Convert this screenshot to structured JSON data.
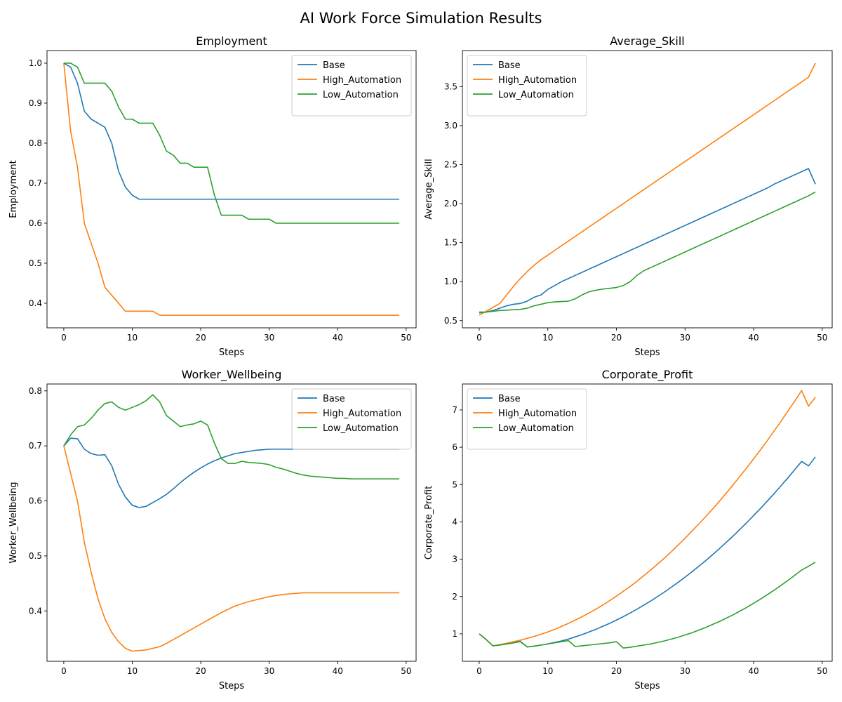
{
  "figure": {
    "title": "AI Work Force Simulation Results"
  },
  "chart_data": [
    {
      "type": "line",
      "title": "Employment",
      "xlabel": "Steps",
      "ylabel": "Employment",
      "xlim": [
        -2.45,
        51.45
      ],
      "ylim": [
        0.3385,
        1.0315
      ],
      "xticks": [
        0,
        10,
        20,
        30,
        40,
        50
      ],
      "yticks": [
        0.4,
        0.5,
        0.6,
        0.7,
        0.8,
        0.9,
        1.0
      ],
      "ytick_labels": [
        "0.4",
        "0.5",
        "0.6",
        "0.7",
        "0.8",
        "0.9",
        "1.0"
      ],
      "legend": "upper-right",
      "series": [
        {
          "name": "Base",
          "color": "#1f77b4",
          "values": [
            1.0,
            0.99,
            0.95,
            0.88,
            0.86,
            0.85,
            0.84,
            0.8,
            0.73,
            0.69,
            0.67,
            0.66,
            0.66,
            0.66,
            0.66,
            0.66,
            0.66,
            0.66,
            0.66,
            0.66,
            0.66,
            0.66,
            0.66,
            0.66,
            0.66,
            0.66,
            0.66,
            0.66,
            0.66,
            0.66,
            0.66,
            0.66,
            0.66,
            0.66,
            0.66,
            0.66,
            0.66,
            0.66,
            0.66,
            0.66,
            0.66,
            0.66,
            0.66,
            0.66,
            0.66,
            0.66,
            0.66,
            0.66,
            0.66,
            0.66
          ]
        },
        {
          "name": "High_Automation",
          "color": "#ff7f0e",
          "values": [
            1.0,
            0.83,
            0.74,
            0.6,
            0.55,
            0.5,
            0.44,
            0.42,
            0.4,
            0.38,
            0.38,
            0.38,
            0.38,
            0.38,
            0.37,
            0.37,
            0.37,
            0.37,
            0.37,
            0.37,
            0.37,
            0.37,
            0.37,
            0.37,
            0.37,
            0.37,
            0.37,
            0.37,
            0.37,
            0.37,
            0.37,
            0.37,
            0.37,
            0.37,
            0.37,
            0.37,
            0.37,
            0.37,
            0.37,
            0.37,
            0.37,
            0.37,
            0.37,
            0.37,
            0.37,
            0.37,
            0.37,
            0.37,
            0.37,
            0.37
          ]
        },
        {
          "name": "Low_Automation",
          "color": "#2ca02c",
          "values": [
            1.0,
            1.0,
            0.99,
            0.95,
            0.95,
            0.95,
            0.95,
            0.93,
            0.89,
            0.86,
            0.86,
            0.85,
            0.85,
            0.85,
            0.82,
            0.78,
            0.77,
            0.75,
            0.75,
            0.74,
            0.74,
            0.74,
            0.67,
            0.62,
            0.62,
            0.62,
            0.62,
            0.61,
            0.61,
            0.61,
            0.61,
            0.6,
            0.6,
            0.6,
            0.6,
            0.6,
            0.6,
            0.6,
            0.6,
            0.6,
            0.6,
            0.6,
            0.6,
            0.6,
            0.6,
            0.6,
            0.6,
            0.6,
            0.6,
            0.6
          ]
        }
      ]
    },
    {
      "type": "line",
      "title": "Average_Skill",
      "xlabel": "Steps",
      "ylabel": "Average_Skill",
      "xlim": [
        -2.45,
        51.45
      ],
      "ylim": [
        0.408,
        3.962
      ],
      "xticks": [
        0,
        10,
        20,
        30,
        40,
        50
      ],
      "yticks": [
        0.5,
        1.0,
        1.5,
        2.0,
        2.5,
        3.0,
        3.5
      ],
      "ytick_labels": [
        "0.5",
        "1.0",
        "1.5",
        "2.0",
        "2.5",
        "3.0",
        "3.5"
      ],
      "legend": "upper-left",
      "series": [
        {
          "name": "Base",
          "color": "#1f77b4",
          "values": [
            0.61,
            0.61,
            0.63,
            0.66,
            0.69,
            0.71,
            0.72,
            0.75,
            0.8,
            0.83,
            0.9,
            0.95,
            1.0,
            1.04,
            1.08,
            1.12,
            1.16,
            1.2,
            1.24,
            1.28,
            1.32,
            1.36,
            1.4,
            1.44,
            1.48,
            1.52,
            1.56,
            1.6,
            1.64,
            1.68,
            1.72,
            1.76,
            1.8,
            1.84,
            1.88,
            1.92,
            1.96,
            2.0,
            2.04,
            2.08,
            2.12,
            2.16,
            2.2,
            2.25,
            2.29,
            2.33,
            2.37,
            2.41,
            2.45,
            2.25
          ]
        },
        {
          "name": "High_Automation",
          "color": "#ff7f0e",
          "values": [
            0.57,
            0.62,
            0.67,
            0.72,
            0.83,
            0.94,
            1.04,
            1.13,
            1.21,
            1.28,
            1.34,
            1.4,
            1.46,
            1.52,
            1.58,
            1.64,
            1.7,
            1.76,
            1.82,
            1.88,
            1.94,
            2.0,
            2.06,
            2.12,
            2.18,
            2.24,
            2.3,
            2.36,
            2.42,
            2.48,
            2.54,
            2.6,
            2.66,
            2.72,
            2.78,
            2.84,
            2.9,
            2.96,
            3.02,
            3.08,
            3.14,
            3.2,
            3.26,
            3.32,
            3.38,
            3.44,
            3.5,
            3.56,
            3.62,
            3.8
          ]
        },
        {
          "name": "Low_Automation",
          "color": "#2ca02c",
          "values": [
            0.6,
            0.61,
            0.62,
            0.63,
            0.635,
            0.64,
            0.645,
            0.66,
            0.69,
            0.71,
            0.73,
            0.74,
            0.745,
            0.75,
            0.78,
            0.83,
            0.87,
            0.89,
            0.905,
            0.915,
            0.925,
            0.95,
            1.0,
            1.08,
            1.14,
            1.18,
            1.22,
            1.26,
            1.3,
            1.34,
            1.38,
            1.42,
            1.46,
            1.5,
            1.54,
            1.58,
            1.62,
            1.66,
            1.7,
            1.74,
            1.78,
            1.82,
            1.86,
            1.9,
            1.94,
            1.98,
            2.02,
            2.06,
            2.1,
            2.15
          ]
        }
      ]
    },
    {
      "type": "line",
      "title": "Worker_Wellbeing",
      "xlabel": "Steps",
      "ylabel": "Worker_Wellbeing",
      "xlim": [
        -2.45,
        51.45
      ],
      "ylim": [
        0.3085,
        0.8125
      ],
      "xticks": [
        0,
        10,
        20,
        30,
        40,
        50
      ],
      "yticks": [
        0.4,
        0.5,
        0.6,
        0.7,
        0.8
      ],
      "ytick_labels": [
        "0.4",
        "0.5",
        "0.6",
        "0.7",
        "0.8"
      ],
      "legend": "upper-right",
      "series": [
        {
          "name": "Base",
          "color": "#1f77b4",
          "values": [
            0.7,
            0.714,
            0.713,
            0.694,
            0.686,
            0.683,
            0.684,
            0.664,
            0.63,
            0.607,
            0.592,
            0.588,
            0.59,
            0.597,
            0.604,
            0.612,
            0.622,
            0.633,
            0.643,
            0.652,
            0.66,
            0.667,
            0.673,
            0.678,
            0.682,
            0.686,
            0.688,
            0.69,
            0.692,
            0.693,
            0.694,
            0.694,
            0.694,
            0.694,
            0.694,
            0.694,
            0.694,
            0.694,
            0.694,
            0.694,
            0.694,
            0.694,
            0.694,
            0.694,
            0.694,
            0.694,
            0.694,
            0.694,
            0.694,
            0.694
          ]
        },
        {
          "name": "High_Automation",
          "color": "#ff7f0e",
          "values": [
            0.7,
            0.65,
            0.6,
            0.525,
            0.47,
            0.422,
            0.386,
            0.361,
            0.344,
            0.332,
            0.327,
            0.328,
            0.329,
            0.332,
            0.335,
            0.341,
            0.348,
            0.355,
            0.362,
            0.369,
            0.376,
            0.383,
            0.39,
            0.397,
            0.403,
            0.409,
            0.413,
            0.417,
            0.42,
            0.423,
            0.426,
            0.428,
            0.43,
            0.431,
            0.432,
            0.433,
            0.433,
            0.433,
            0.433,
            0.433,
            0.433,
            0.433,
            0.433,
            0.433,
            0.433,
            0.433,
            0.433,
            0.433,
            0.433,
            0.433
          ]
        },
        {
          "name": "Low_Automation",
          "color": "#2ca02c",
          "values": [
            0.7,
            0.72,
            0.735,
            0.738,
            0.75,
            0.765,
            0.777,
            0.78,
            0.77,
            0.765,
            0.77,
            0.775,
            0.782,
            0.793,
            0.78,
            0.755,
            0.745,
            0.735,
            0.738,
            0.74,
            0.745,
            0.738,
            0.705,
            0.677,
            0.668,
            0.668,
            0.672,
            0.67,
            0.669,
            0.668,
            0.666,
            0.661,
            0.658,
            0.654,
            0.65,
            0.647,
            0.645,
            0.644,
            0.643,
            0.642,
            0.641,
            0.641,
            0.64,
            0.64,
            0.64,
            0.64,
            0.64,
            0.64,
            0.64,
            0.64
          ]
        }
      ]
    },
    {
      "type": "line",
      "title": "Corporate_Profit",
      "xlabel": "Steps",
      "ylabel": "Corporate_Profit",
      "xlim": [
        -2.45,
        51.45
      ],
      "ylim": [
        0.265,
        7.695
      ],
      "xticks": [
        0,
        10,
        20,
        30,
        40,
        50
      ],
      "yticks": [
        1,
        2,
        3,
        4,
        5,
        6,
        7
      ],
      "ytick_labels": [
        "1",
        "2",
        "3",
        "4",
        "5",
        "6",
        "7"
      ],
      "legend": "upper-left",
      "series": [
        {
          "name": "Base",
          "color": "#1f77b4",
          "values": [
            1.0,
            0.85,
            0.68,
            0.7,
            0.73,
            0.76,
            0.79,
            0.65,
            0.67,
            0.7,
            0.73,
            0.77,
            0.81,
            0.86,
            0.92,
            0.98,
            1.05,
            1.12,
            1.2,
            1.28,
            1.37,
            1.46,
            1.56,
            1.66,
            1.77,
            1.88,
            2.0,
            2.12,
            2.25,
            2.38,
            2.52,
            2.66,
            2.81,
            2.96,
            3.12,
            3.28,
            3.45,
            3.62,
            3.8,
            3.98,
            4.17,
            4.36,
            4.56,
            4.76,
            4.97,
            5.18,
            5.4,
            5.62,
            5.5,
            5.74
          ]
        },
        {
          "name": "High_Automation",
          "color": "#ff7f0e",
          "values": [
            1.0,
            0.85,
            0.68,
            0.71,
            0.75,
            0.79,
            0.83,
            0.88,
            0.93,
            0.99,
            1.05,
            1.12,
            1.2,
            1.28,
            1.37,
            1.46,
            1.56,
            1.66,
            1.77,
            1.89,
            2.01,
            2.14,
            2.27,
            2.41,
            2.56,
            2.71,
            2.87,
            3.03,
            3.2,
            3.38,
            3.56,
            3.75,
            3.94,
            4.14,
            4.34,
            4.55,
            4.77,
            4.99,
            5.22,
            5.45,
            5.69,
            5.93,
            6.18,
            6.44,
            6.7,
            6.97,
            7.24,
            7.52,
            7.1,
            7.34
          ]
        },
        {
          "name": "Low_Automation",
          "color": "#2ca02c",
          "values": [
            1.0,
            0.85,
            0.68,
            0.7,
            0.73,
            0.76,
            0.8,
            0.65,
            0.67,
            0.7,
            0.73,
            0.76,
            0.79,
            0.82,
            0.66,
            0.68,
            0.7,
            0.72,
            0.74,
            0.76,
            0.79,
            0.62,
            0.64,
            0.67,
            0.7,
            0.73,
            0.77,
            0.81,
            0.86,
            0.91,
            0.97,
            1.03,
            1.1,
            1.17,
            1.25,
            1.33,
            1.42,
            1.51,
            1.61,
            1.71,
            1.82,
            1.93,
            2.05,
            2.17,
            2.3,
            2.43,
            2.57,
            2.71,
            2.81,
            2.92
          ]
        }
      ]
    }
  ]
}
